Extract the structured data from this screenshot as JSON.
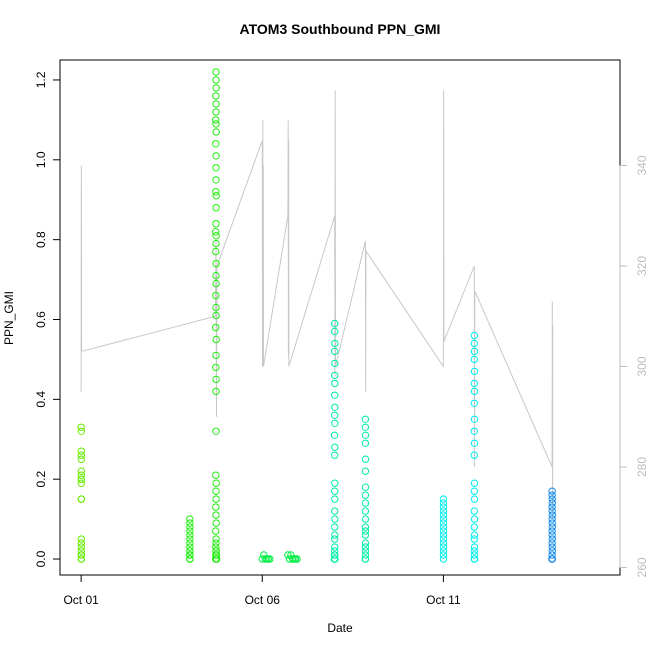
{
  "chart_data": {
    "type": "scatter",
    "title": "ATOM3 Southbound PPN_GMI",
    "xlabel": "Date",
    "ylabel": "PPN_GMI",
    "x_axis": {
      "type": "date",
      "lim": [
        "2014-09-30T10:00",
        "2014-10-15T21:00"
      ],
      "ticks": [
        "2014-10-01",
        "2014-10-06",
        "2014-10-11"
      ],
      "tick_labels": [
        "Oct 01",
        "Oct 06",
        "Oct 11"
      ]
    },
    "y_axis_left": {
      "lim": [
        -0.04,
        1.25
      ],
      "ticks": [
        0.0,
        0.2,
        0.4,
        0.6,
        0.8,
        1.0,
        1.2
      ],
      "tick_labels": [
        "0.0",
        "0.2",
        "0.4",
        "0.6",
        "0.8",
        "1.0",
        "1.2"
      ]
    },
    "y_axis_right": {
      "lim": [
        258.5,
        361
      ],
      "ticks": [
        260,
        280,
        300,
        320,
        340
      ],
      "tick_labels": [
        "260",
        "280",
        "300",
        "320",
        "340"
      ],
      "color": "#bdbdbd"
    },
    "grid": false,
    "marker": "open-circle",
    "series": [
      {
        "color": "#66ee00",
        "points": [
          [
            "2014-10-01T00:00",
            0.33
          ],
          [
            "2014-10-01T00:05",
            0.32
          ],
          [
            "2014-10-01T00:05",
            0.27
          ],
          [
            "2014-10-01T00:05",
            0.26
          ],
          [
            "2014-10-01T00:05",
            0.25
          ],
          [
            "2014-10-01T00:05",
            0.22
          ],
          [
            "2014-10-01T00:05",
            0.21
          ],
          [
            "2014-10-01T00:05",
            0.2
          ],
          [
            "2014-10-01T00:05",
            0.2
          ],
          [
            "2014-10-01T00:05",
            0.19
          ],
          [
            "2014-10-01T00:05",
            0.15
          ],
          [
            "2014-10-01T00:05",
            0.15
          ],
          [
            "2014-10-01T00:05",
            0.05
          ],
          [
            "2014-10-01T00:05",
            0.04
          ],
          [
            "2014-10-01T00:05",
            0.03
          ],
          [
            "2014-10-01T00:05",
            0.02
          ],
          [
            "2014-10-01T00:05",
            0.01
          ],
          [
            "2014-10-01T00:05",
            0.01
          ],
          [
            "2014-10-01T00:05",
            0.0
          ],
          [
            "2014-10-01T00:05",
            0.0
          ]
        ]
      },
      {
        "color": "#22ee11",
        "points": [
          [
            "2014-10-04T00:00",
            0.1
          ],
          [
            "2014-10-04T00:05",
            0.09
          ],
          [
            "2014-10-04T00:05",
            0.08
          ],
          [
            "2014-10-04T00:05",
            0.07
          ],
          [
            "2014-10-04T00:05",
            0.06
          ],
          [
            "2014-10-04T00:05",
            0.05
          ],
          [
            "2014-10-04T00:05",
            0.04
          ],
          [
            "2014-10-04T00:05",
            0.03
          ],
          [
            "2014-10-04T00:05",
            0.02
          ],
          [
            "2014-10-04T00:05",
            0.02
          ],
          [
            "2014-10-04T00:05",
            0.01
          ],
          [
            "2014-10-04T00:05",
            0.01
          ],
          [
            "2014-10-04T00:05",
            0.01
          ],
          [
            "2014-10-04T00:05",
            0.0
          ],
          [
            "2014-10-04T00:05",
            0.0
          ],
          [
            "2014-10-04T00:05",
            0.0
          ],
          [
            "2014-10-04T17:20",
            1.22
          ],
          [
            "2014-10-04T17:20",
            1.2
          ],
          [
            "2014-10-04T17:30",
            1.18
          ],
          [
            "2014-10-04T17:15",
            1.16
          ],
          [
            "2014-10-04T17:25",
            1.14
          ],
          [
            "2014-10-04T17:20",
            1.12
          ],
          [
            "2014-10-04T17:20",
            1.09
          ],
          [
            "2014-10-04T17:10",
            1.1
          ],
          [
            "2014-10-04T17:30",
            1.07
          ],
          [
            "2014-10-04T17:15",
            1.04
          ],
          [
            "2014-10-04T17:25",
            1.01
          ],
          [
            "2014-10-04T17:20",
            0.98
          ],
          [
            "2014-10-04T17:20",
            0.95
          ],
          [
            "2014-10-04T17:15",
            0.92
          ],
          [
            "2014-10-04T17:30",
            0.91
          ],
          [
            "2014-10-04T17:25",
            0.88
          ],
          [
            "2014-10-04T17:20",
            0.84
          ],
          [
            "2014-10-04T17:10",
            0.82
          ],
          [
            "2014-10-04T17:25",
            0.81
          ],
          [
            "2014-10-04T17:20",
            0.79
          ],
          [
            "2014-10-04T17:15",
            0.77
          ],
          [
            "2014-10-04T17:30",
            0.74
          ],
          [
            "2014-10-04T17:20",
            0.71
          ],
          [
            "2014-10-04T17:25",
            0.69
          ],
          [
            "2014-10-04T17:15",
            0.66
          ],
          [
            "2014-10-04T17:20",
            0.63
          ],
          [
            "2014-10-04T17:25",
            0.61
          ],
          [
            "2014-10-04T17:10",
            0.58
          ],
          [
            "2014-10-04T17:30",
            0.55
          ],
          [
            "2014-10-04T17:20",
            0.51
          ],
          [
            "2014-10-04T17:15",
            0.48
          ],
          [
            "2014-10-04T17:25",
            0.45
          ],
          [
            "2014-10-04T17:20",
            0.42
          ],
          [
            "2014-10-04T17:20",
            0.32
          ],
          [
            "2014-10-04T17:15",
            0.21
          ],
          [
            "2014-10-04T17:30",
            0.19
          ],
          [
            "2014-10-04T17:20",
            0.17
          ],
          [
            "2014-10-04T17:25",
            0.15
          ],
          [
            "2014-10-04T17:15",
            0.13
          ],
          [
            "2014-10-04T17:20",
            0.11
          ],
          [
            "2014-10-04T17:30",
            0.09
          ],
          [
            "2014-10-04T17:10",
            0.07
          ],
          [
            "2014-10-04T17:25",
            0.05
          ],
          [
            "2014-10-04T17:20",
            0.04
          ],
          [
            "2014-10-04T17:15",
            0.03
          ],
          [
            "2014-10-04T17:30",
            0.02
          ],
          [
            "2014-10-04T17:20",
            0.02
          ],
          [
            "2014-10-04T17:25",
            0.01
          ],
          [
            "2014-10-04T17:15",
            0.01
          ],
          [
            "2014-10-04T17:20",
            0.0
          ],
          [
            "2014-10-04T17:30",
            0.0
          ],
          [
            "2014-10-04T17:10",
            0.0
          ],
          [
            "2014-10-04T17:40",
            0.01
          ],
          [
            "2014-10-04T17:50",
            0.0
          ]
        ]
      },
      {
        "color": "#00ee44",
        "points": [
          [
            "2014-10-06T00:00",
            0.0
          ],
          [
            "2014-10-06T01:00",
            0.01
          ],
          [
            "2014-10-06T02:00",
            0.0
          ],
          [
            "2014-10-06T03:00",
            0.0
          ],
          [
            "2014-10-06T04:00",
            0.0
          ],
          [
            "2014-10-06T05:00",
            0.0
          ],
          [
            "2014-10-06T17:00",
            0.01
          ],
          [
            "2014-10-06T18:00",
            0.0
          ],
          [
            "2014-10-06T19:00",
            0.01
          ],
          [
            "2014-10-06T20:00",
            0.0
          ],
          [
            "2014-10-06T21:00",
            0.0
          ],
          [
            "2014-10-06T22:00",
            0.0
          ],
          [
            "2014-10-06T23:00",
            0.0
          ]
        ]
      },
      {
        "color": "#00eeaa",
        "points": [
          [
            "2014-10-08T00:00",
            0.59
          ],
          [
            "2014-10-08T00:00",
            0.57
          ],
          [
            "2014-10-08T00:05",
            0.54
          ],
          [
            "2014-10-08T00:00",
            0.52
          ],
          [
            "2014-10-08T00:05",
            0.49
          ],
          [
            "2014-10-08T00:00",
            0.46
          ],
          [
            "2014-10-08T00:05",
            0.44
          ],
          [
            "2014-10-08T00:00",
            0.41
          ],
          [
            "2014-10-08T00:05",
            0.38
          ],
          [
            "2014-10-08T00:00",
            0.36
          ],
          [
            "2014-10-08T00:05",
            0.34
          ],
          [
            "2014-10-07T23:50",
            0.31
          ],
          [
            "2014-10-08T00:05",
            0.28
          ],
          [
            "2014-10-08T00:00",
            0.26
          ],
          [
            "2014-10-08T00:05",
            0.19
          ],
          [
            "2014-10-08T00:00",
            0.17
          ],
          [
            "2014-10-08T00:05",
            0.15
          ],
          [
            "2014-10-08T00:00",
            0.12
          ],
          [
            "2014-10-08T00:05",
            0.1
          ],
          [
            "2014-10-08T00:00",
            0.08
          ],
          [
            "2014-10-08T00:05",
            0.06
          ],
          [
            "2014-10-08T00:00",
            0.05
          ],
          [
            "2014-10-08T00:05",
            0.03
          ],
          [
            "2014-10-08T00:00",
            0.02
          ],
          [
            "2014-10-07T23:50",
            0.01
          ],
          [
            "2014-10-08T00:05",
            0.01
          ],
          [
            "2014-10-08T00:00",
            0.0
          ],
          [
            "2014-10-07T23:45",
            0.0
          ],
          [
            "2014-10-08T00:10",
            0.0
          ],
          [
            "2014-10-08T20:20",
            0.35
          ],
          [
            "2014-10-08T20:20",
            0.33
          ],
          [
            "2014-10-08T20:25",
            0.31
          ],
          [
            "2014-10-08T20:20",
            0.29
          ],
          [
            "2014-10-08T20:25",
            0.25
          ],
          [
            "2014-10-08T20:20",
            0.22
          ],
          [
            "2014-10-08T20:25",
            0.18
          ],
          [
            "2014-10-08T20:20",
            0.16
          ],
          [
            "2014-10-08T20:25",
            0.14
          ],
          [
            "2014-10-08T20:20",
            0.12
          ],
          [
            "2014-10-08T20:25",
            0.1
          ],
          [
            "2014-10-08T20:20",
            0.08
          ],
          [
            "2014-10-08T20:25",
            0.07
          ],
          [
            "2014-10-08T20:20",
            0.06
          ],
          [
            "2014-10-08T20:25",
            0.04
          ],
          [
            "2014-10-08T20:20",
            0.03
          ],
          [
            "2014-10-08T20:25",
            0.02
          ],
          [
            "2014-10-08T20:20",
            0.01
          ],
          [
            "2014-10-08T20:25",
            0.0
          ],
          [
            "2014-10-08T20:15",
            0.0
          ]
        ]
      },
      {
        "color": "#00eeee",
        "points": [
          [
            "2014-10-11T00:00",
            0.15
          ],
          [
            "2014-10-11T00:05",
            0.14
          ],
          [
            "2014-10-11T00:00",
            0.13
          ],
          [
            "2014-10-11T00:05",
            0.12
          ],
          [
            "2014-10-11T00:00",
            0.11
          ],
          [
            "2014-10-11T00:05",
            0.1
          ],
          [
            "2014-10-11T00:00",
            0.09
          ],
          [
            "2014-10-11T00:05",
            0.08
          ],
          [
            "2014-10-11T00:00",
            0.07
          ],
          [
            "2014-10-11T00:05",
            0.06
          ],
          [
            "2014-10-11T00:00",
            0.05
          ],
          [
            "2014-10-11T00:05",
            0.04
          ],
          [
            "2014-10-11T00:00",
            0.03
          ],
          [
            "2014-10-11T00:05",
            0.02
          ],
          [
            "2014-10-11T00:00",
            0.01
          ],
          [
            "2014-10-11T00:05",
            0.0
          ],
          [
            "2014-10-11T20:30",
            0.56
          ],
          [
            "2014-10-11T20:30",
            0.54
          ],
          [
            "2014-10-11T20:35",
            0.52
          ],
          [
            "2014-10-11T20:30",
            0.5
          ],
          [
            "2014-10-11T20:35",
            0.47
          ],
          [
            "2014-10-11T20:30",
            0.44
          ],
          [
            "2014-10-11T20:35",
            0.42
          ],
          [
            "2014-10-11T20:30",
            0.39
          ],
          [
            "2014-10-11T20:35",
            0.35
          ],
          [
            "2014-10-11T20:30",
            0.32
          ],
          [
            "2014-10-11T20:35",
            0.29
          ],
          [
            "2014-10-11T20:30",
            0.26
          ],
          [
            "2014-10-11T20:35",
            0.19
          ],
          [
            "2014-10-11T20:30",
            0.17
          ],
          [
            "2014-10-11T20:35",
            0.15
          ],
          [
            "2014-10-11T20:30",
            0.12
          ],
          [
            "2014-10-11T20:35",
            0.1
          ],
          [
            "2014-10-11T20:30",
            0.08
          ],
          [
            "2014-10-11T20:35",
            0.06
          ],
          [
            "2014-10-11T20:30",
            0.05
          ],
          [
            "2014-10-11T20:35",
            0.03
          ],
          [
            "2014-10-11T20:30",
            0.02
          ],
          [
            "2014-10-11T20:35",
            0.01
          ],
          [
            "2014-10-11T20:30",
            0.0
          ],
          [
            "2014-10-11T20:40",
            0.0
          ]
        ]
      },
      {
        "color": "#1188ee",
        "points": [
          [
            "2014-10-14T00:00",
            0.17
          ],
          [
            "2014-10-14T00:00",
            0.16
          ],
          [
            "2014-10-14T00:05",
            0.15
          ],
          [
            "2014-10-14T00:10",
            0.14
          ],
          [
            "2014-10-14T00:00",
            0.13
          ],
          [
            "2014-10-14T00:05",
            0.12
          ],
          [
            "2014-10-14T00:10",
            0.11
          ],
          [
            "2014-10-14T00:00",
            0.1
          ],
          [
            "2014-10-14T00:05",
            0.09
          ],
          [
            "2014-10-14T00:10",
            0.08
          ],
          [
            "2014-10-14T00:00",
            0.07
          ],
          [
            "2014-10-14T00:05",
            0.06
          ],
          [
            "2014-10-14T00:10",
            0.05
          ],
          [
            "2014-10-14T00:00",
            0.04
          ],
          [
            "2014-10-14T00:05",
            0.03
          ],
          [
            "2014-10-14T00:10",
            0.02
          ],
          [
            "2014-10-14T00:00",
            0.01
          ],
          [
            "2014-10-14T00:05",
            0.0
          ],
          [
            "2014-10-14T00:10",
            0.0
          ],
          [
            "2014-10-13T23:55",
            0.0
          ]
        ]
      }
    ],
    "line_series": {
      "axis": "right",
      "color": "#c8c8c8",
      "points": [
        [
          "2014-10-01T00:00",
          295
        ],
        [
          "2014-10-01T00:05",
          340
        ],
        [
          "2014-10-01T00:10",
          330
        ],
        [
          "2014-10-01T00:15",
          335
        ],
        [
          "2014-10-01T00:20",
          303
        ],
        [
          "2014-10-04T17:00",
          310
        ],
        [
          "2014-10-04T17:20",
          325
        ],
        [
          "2014-10-04T17:40",
          290
        ],
        [
          "2014-10-04T18:00",
          320
        ],
        [
          "2014-10-06T00:00",
          345
        ],
        [
          "2014-10-06T00:10",
          300
        ],
        [
          "2014-10-06T00:20",
          349
        ],
        [
          "2014-10-06T00:30",
          303
        ],
        [
          "2014-10-06T00:40",
          340
        ],
        [
          "2014-10-06T00:50",
          300
        ],
        [
          "2014-10-06T17:00",
          330
        ],
        [
          "2014-10-06T17:10",
          349
        ],
        [
          "2014-10-06T17:20",
          302
        ],
        [
          "2014-10-06T17:30",
          345
        ],
        [
          "2014-10-06T17:40",
          300
        ],
        [
          "2014-10-08T00:00",
          330
        ],
        [
          "2014-10-08T00:10",
          298
        ],
        [
          "2014-10-08T00:20",
          355
        ],
        [
          "2014-10-08T00:30",
          300
        ],
        [
          "2014-10-08T20:20",
          325
        ],
        [
          "2014-10-08T20:30",
          295
        ],
        [
          "2014-10-08T20:40",
          323
        ],
        [
          "2014-10-11T00:00",
          300
        ],
        [
          "2014-10-11T00:10",
          355
        ],
        [
          "2014-10-11T00:20",
          305
        ],
        [
          "2014-10-11T20:30",
          320
        ],
        [
          "2014-10-11T20:40",
          280
        ],
        [
          "2014-10-11T20:50",
          315
        ],
        [
          "2014-10-14T00:00",
          280
        ],
        [
          "2014-10-14T00:10",
          313
        ],
        [
          "2014-10-14T00:20",
          270
        ],
        [
          "2014-10-14T00:30",
          308
        ]
      ]
    }
  }
}
